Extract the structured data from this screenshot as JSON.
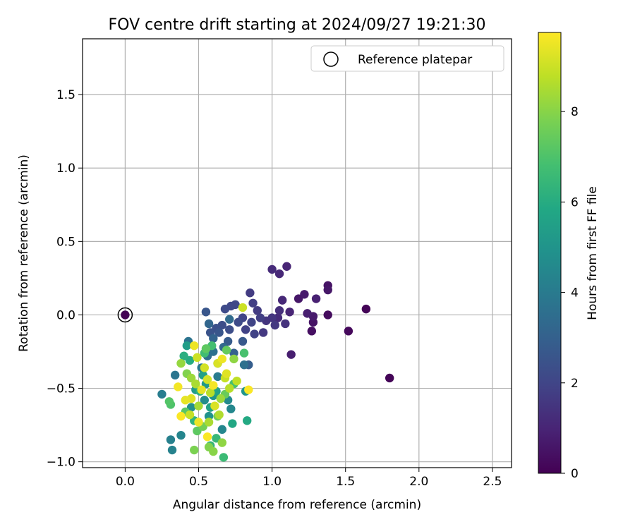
{
  "chart_data": {
    "type": "scatter",
    "title": "FOV centre drift starting at 2024/09/27 19:21:30",
    "xlabel": "Angular distance from reference (arcmin)",
    "ylabel": "Rotation from reference (arcmin)",
    "xlim": [
      -0.29,
      2.63
    ],
    "ylim": [
      -1.04,
      1.88
    ],
    "x_ticks": [
      0.0,
      0.5,
      1.0,
      1.5,
      2.0,
      2.5
    ],
    "x_tick_labels": [
      "0.0",
      "0.5",
      "1.0",
      "1.5",
      "2.0",
      "2.5"
    ],
    "y_ticks": [
      -1.0,
      -0.5,
      0.0,
      0.5,
      1.0,
      1.5
    ],
    "y_tick_labels": [
      "−1.0",
      "−0.5",
      "0.0",
      "0.5",
      "1.0",
      "1.5"
    ],
    "grid": true,
    "legend": {
      "position": "top-right",
      "entries": [
        "Reference platepar"
      ]
    },
    "reference_point": {
      "x": 0.0,
      "y": 0.0,
      "label": "Reference platepar"
    },
    "colorbar": {
      "label": "Hours from first FF file",
      "min": 0,
      "max": 9.75,
      "ticks": [
        0,
        2,
        4,
        6,
        8
      ],
      "tick_labels": [
        "0",
        "2",
        "4",
        "6",
        "8"
      ],
      "colormap": "viridis"
    },
    "points": [
      [
        1.64,
        0.04,
        0.1
      ],
      [
        1.8,
        -0.43,
        0.1
      ],
      [
        1.52,
        -0.11,
        0.2
      ],
      [
        1.38,
        0.0,
        0.3
      ],
      [
        1.38,
        0.2,
        0.5
      ],
      [
        1.38,
        0.17,
        0.6
      ],
      [
        1.27,
        -0.11,
        0.4
      ],
      [
        1.28,
        -0.05,
        0.5
      ],
      [
        1.28,
        -0.01,
        0.7
      ],
      [
        1.24,
        0.01,
        0.8
      ],
      [
        1.22,
        0.14,
        0.7
      ],
      [
        1.18,
        0.11,
        0.6
      ],
      [
        1.3,
        0.11,
        0.9
      ],
      [
        1.13,
        -0.27,
        0.8
      ],
      [
        1.12,
        0.02,
        1.0
      ],
      [
        1.1,
        0.33,
        1.0
      ],
      [
        1.05,
        0.28,
        1.1
      ],
      [
        1.0,
        0.31,
        1.2
      ],
      [
        1.07,
        0.1,
        1.1
      ],
      [
        1.04,
        -0.02,
        1.2
      ],
      [
        1.05,
        0.03,
        1.3
      ],
      [
        1.09,
        -0.06,
        1.4
      ],
      [
        1.0,
        -0.02,
        1.5
      ],
      [
        0.96,
        -0.04,
        1.5
      ],
      [
        1.02,
        -0.07,
        1.6
      ],
      [
        0.94,
        -0.12,
        1.6
      ],
      [
        0.9,
        0.03,
        1.7
      ],
      [
        0.85,
        0.15,
        1.7
      ],
      [
        0.87,
        0.08,
        1.8
      ],
      [
        0.92,
        -0.02,
        1.8
      ],
      [
        0.88,
        -0.13,
        1.9
      ],
      [
        0.82,
        -0.1,
        1.9
      ],
      [
        0.86,
        -0.05,
        2.0
      ],
      [
        0.8,
        -0.02,
        2.0
      ],
      [
        0.75,
        0.07,
        2.1
      ],
      [
        0.72,
        0.06,
        2.1
      ],
      [
        0.68,
        0.04,
        2.2
      ],
      [
        0.77,
        -0.05,
        2.2
      ],
      [
        0.71,
        -0.1,
        2.3
      ],
      [
        0.66,
        -0.07,
        2.3
      ],
      [
        0.62,
        -0.09,
        2.4
      ],
      [
        0.58,
        -0.12,
        2.5
      ],
      [
        0.55,
        0.02,
        2.6
      ],
      [
        0.64,
        -0.12,
        2.6
      ],
      [
        0.8,
        -0.18,
        2.7
      ],
      [
        0.7,
        -0.18,
        2.8
      ],
      [
        0.84,
        -0.34,
        2.9
      ],
      [
        0.74,
        -0.26,
        3.0
      ],
      [
        0.6,
        -0.16,
        3.1
      ],
      [
        0.57,
        -0.06,
        3.2
      ],
      [
        0.67,
        -0.22,
        3.3
      ],
      [
        0.71,
        -0.03,
        3.4
      ],
      [
        0.56,
        -0.28,
        3.5
      ],
      [
        0.81,
        -0.34,
        3.6
      ],
      [
        0.6,
        -0.25,
        3.6
      ],
      [
        0.43,
        -0.18,
        3.7
      ],
      [
        0.34,
        -0.41,
        3.8
      ],
      [
        0.52,
        -0.36,
        3.9
      ],
      [
        0.63,
        -0.42,
        4.0
      ],
      [
        0.25,
        -0.54,
        4.1
      ],
      [
        0.31,
        -0.85,
        4.2
      ],
      [
        0.32,
        -0.92,
        4.3
      ],
      [
        0.38,
        -0.82,
        4.4
      ],
      [
        0.72,
        -0.64,
        4.5
      ],
      [
        0.66,
        -0.78,
        4.5
      ],
      [
        0.7,
        -0.58,
        4.6
      ],
      [
        0.54,
        -0.58,
        4.7
      ],
      [
        0.45,
        -0.63,
        4.8
      ],
      [
        0.57,
        -0.69,
        4.9
      ],
      [
        0.6,
        -0.55,
        5.0
      ],
      [
        0.82,
        -0.52,
        5.1
      ],
      [
        0.55,
        -0.47,
        5.2
      ],
      [
        0.48,
        -0.51,
        5.3
      ],
      [
        0.42,
        -0.21,
        5.4
      ],
      [
        0.63,
        -0.33,
        5.4
      ],
      [
        0.53,
        -0.41,
        5.5
      ],
      [
        0.62,
        -0.52,
        5.6
      ],
      [
        0.58,
        -0.63,
        5.7
      ],
      [
        0.73,
        -0.74,
        5.8
      ],
      [
        0.83,
        -0.72,
        5.9
      ],
      [
        0.44,
        -0.31,
        6.0
      ],
      [
        0.4,
        -0.28,
        6.1
      ],
      [
        0.51,
        -0.52,
        6.2
      ],
      [
        0.47,
        -0.72,
        6.3
      ],
      [
        0.58,
        -0.89,
        6.4
      ],
      [
        0.62,
        -0.84,
        6.5
      ],
      [
        0.67,
        -0.97,
        6.6
      ],
      [
        0.54,
        -0.26,
        6.7
      ],
      [
        0.59,
        -0.21,
        6.8
      ],
      [
        0.81,
        -0.26,
        6.9
      ],
      [
        0.74,
        -0.47,
        6.9
      ],
      [
        0.31,
        -0.61,
        7.0
      ],
      [
        0.3,
        -0.59,
        7.1
      ],
      [
        0.41,
        -0.66,
        7.2
      ],
      [
        0.49,
        -0.79,
        7.3
      ],
      [
        0.55,
        -0.23,
        7.3
      ],
      [
        0.69,
        -0.24,
        7.4
      ],
      [
        0.68,
        -0.54,
        7.5
      ],
      [
        0.63,
        -0.69,
        7.6
      ],
      [
        0.53,
        -0.76,
        7.7
      ],
      [
        0.47,
        -0.92,
        7.8
      ],
      [
        0.57,
        -0.9,
        7.9
      ],
      [
        0.6,
        -0.93,
        8.0
      ],
      [
        0.66,
        -0.87,
        8.1
      ],
      [
        0.38,
        -0.33,
        8.2
      ],
      [
        0.45,
        -0.43,
        8.3
      ],
      [
        0.5,
        -0.62,
        8.4
      ],
      [
        0.57,
        -0.73,
        8.5
      ],
      [
        0.64,
        -0.68,
        8.6
      ],
      [
        0.71,
        -0.5,
        8.7
      ],
      [
        0.76,
        -0.45,
        8.8
      ],
      [
        0.8,
        0.05,
        9.0
      ],
      [
        0.44,
        -0.68,
        8.9
      ],
      [
        0.49,
        -0.29,
        9.0
      ],
      [
        0.56,
        -0.44,
        9.1
      ],
      [
        0.63,
        -0.33,
        9.2
      ],
      [
        0.69,
        -0.4,
        9.3
      ],
      [
        0.52,
        -0.51,
        9.4
      ],
      [
        0.41,
        -0.58,
        9.4
      ],
      [
        0.47,
        -0.21,
        9.5
      ],
      [
        0.66,
        -0.3,
        9.5
      ],
      [
        0.36,
        -0.49,
        9.6
      ],
      [
        0.6,
        -0.48,
        9.6
      ],
      [
        0.84,
        -0.51,
        9.7
      ],
      [
        0.38,
        -0.69,
        9.7
      ],
      [
        0.56,
        -0.83,
        9.7
      ],
      [
        0.5,
        -0.73,
        9.5
      ],
      [
        0.45,
        -0.57,
        9.3
      ],
      [
        0.61,
        -0.62,
        9.2
      ],
      [
        0.54,
        -0.36,
        9.1
      ],
      [
        0.68,
        -0.43,
        8.9
      ],
      [
        0.58,
        -0.53,
        8.7
      ],
      [
        0.48,
        -0.47,
        8.5
      ],
      [
        0.65,
        -0.57,
        8.3
      ],
      [
        0.74,
        -0.3,
        8.1
      ],
      [
        0.42,
        -0.4,
        7.9
      ]
    ]
  }
}
